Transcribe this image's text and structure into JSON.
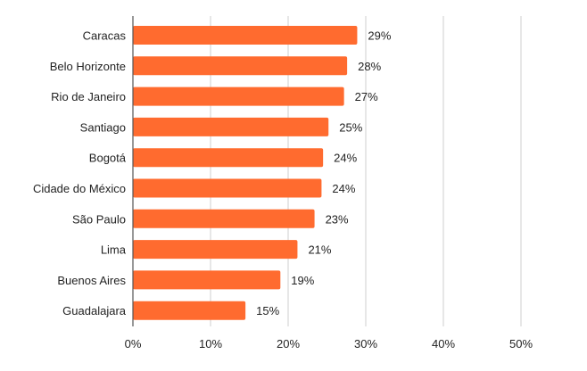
{
  "chart_data": {
    "type": "bar",
    "orientation": "horizontal",
    "categories": [
      "Caracas",
      "Belo Horizonte",
      "Rio de Janeiro",
      "Santiago",
      "Bogotá",
      "Cidade do México",
      "São Paulo",
      "Lima",
      "Buenos Aires",
      "Guadalajara"
    ],
    "values": [
      0.29,
      0.28,
      0.27,
      0.25,
      0.24,
      0.24,
      0.23,
      0.21,
      0.19,
      0.15
    ],
    "bar_actual_values": [
      0.289,
      0.276,
      0.272,
      0.252,
      0.245,
      0.243,
      0.234,
      0.212,
      0.19,
      0.145
    ],
    "data_labels": [
      "29%",
      "28%",
      "27%",
      "25%",
      "24%",
      "24%",
      "23%",
      "21%",
      "19%",
      "15%"
    ],
    "xlim": [
      0,
      0.5
    ],
    "x_ticks": [
      0,
      0.1,
      0.2,
      0.3,
      0.4,
      0.5
    ],
    "x_tick_labels": [
      "0%",
      "10%",
      "20%",
      "30%",
      "40%",
      "50%"
    ],
    "title": "",
    "xlabel": "",
    "ylabel": "",
    "grid": "vertical",
    "legend": "none",
    "bar_color": "#ff6b2f",
    "grid_color": "#cfcfcf",
    "axis_color": "#555555",
    "text_color": "#222222"
  }
}
